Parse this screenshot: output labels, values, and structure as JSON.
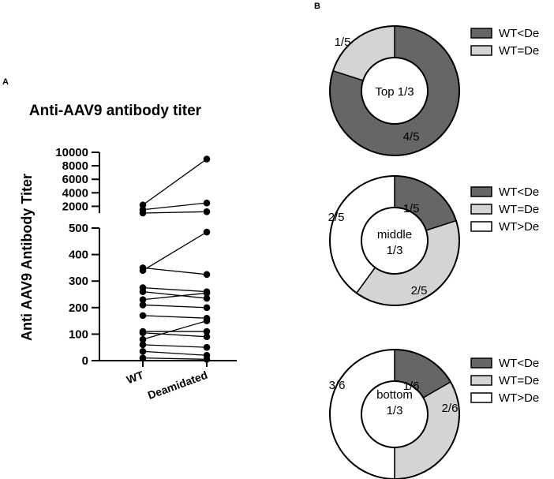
{
  "panel_a_label": "A",
  "panel_b_label": "B",
  "chart_data": [
    {
      "type": "line",
      "title": "Anti-AAV9 antibody titer",
      "xlabel": "",
      "ylabel": "Anti  AAV9  Antibody Titer",
      "categories": [
        "WT",
        "Deamidated"
      ],
      "y_axis_break": true,
      "lower_ylim": [
        0,
        500
      ],
      "lower_ticks": [
        "0",
        "100",
        "200",
        "300",
        "400",
        "500"
      ],
      "upper_ylim": [
        1000,
        10000
      ],
      "upper_ticks": [
        "2000",
        "4000",
        "6000",
        "8000",
        "10000"
      ],
      "pairs": [
        [
          1500,
          2500
        ],
        [
          1000,
          1200
        ],
        [
          2200,
          9000
        ],
        [
          350,
          325
        ],
        [
          340,
          485
        ],
        [
          275,
          260
        ],
        [
          260,
          235
        ],
        [
          230,
          255
        ],
        [
          210,
          200
        ],
        [
          170,
          160
        ],
        [
          110,
          110
        ],
        [
          105,
          90
        ],
        [
          80,
          150
        ],
        [
          60,
          50
        ],
        [
          35,
          20
        ],
        [
          10,
          5
        ]
      ]
    },
    {
      "type": "pie",
      "center_label": [
        "Top 1/3"
      ],
      "slices": [
        {
          "name": "WT<De",
          "label": "4/5",
          "value": 4,
          "color": "#666666"
        },
        {
          "name": "WT=De",
          "label": "1/5",
          "value": 1,
          "color": "#d4d4d4"
        }
      ]
    },
    {
      "type": "pie",
      "center_label": [
        "middle",
        "1/3"
      ],
      "slices": [
        {
          "name": "WT<De",
          "label": "1/5",
          "value": 1,
          "color": "#666666"
        },
        {
          "name": "WT=De",
          "label": "2/5",
          "value": 2,
          "color": "#d4d4d4"
        },
        {
          "name": "WT>De",
          "label": "2/5",
          "value": 2,
          "color": "#ffffff"
        }
      ]
    },
    {
      "type": "pie",
      "center_label": [
        "bottom",
        "1/3"
      ],
      "slices": [
        {
          "name": "WT<De",
          "label": "1/6",
          "value": 1,
          "color": "#666666"
        },
        {
          "name": "WT=De",
          "label": "2/6",
          "value": 2,
          "color": "#d4d4d4"
        },
        {
          "name": "WT>De",
          "label": "3/6",
          "value": 3,
          "color": "#ffffff"
        }
      ]
    }
  ]
}
